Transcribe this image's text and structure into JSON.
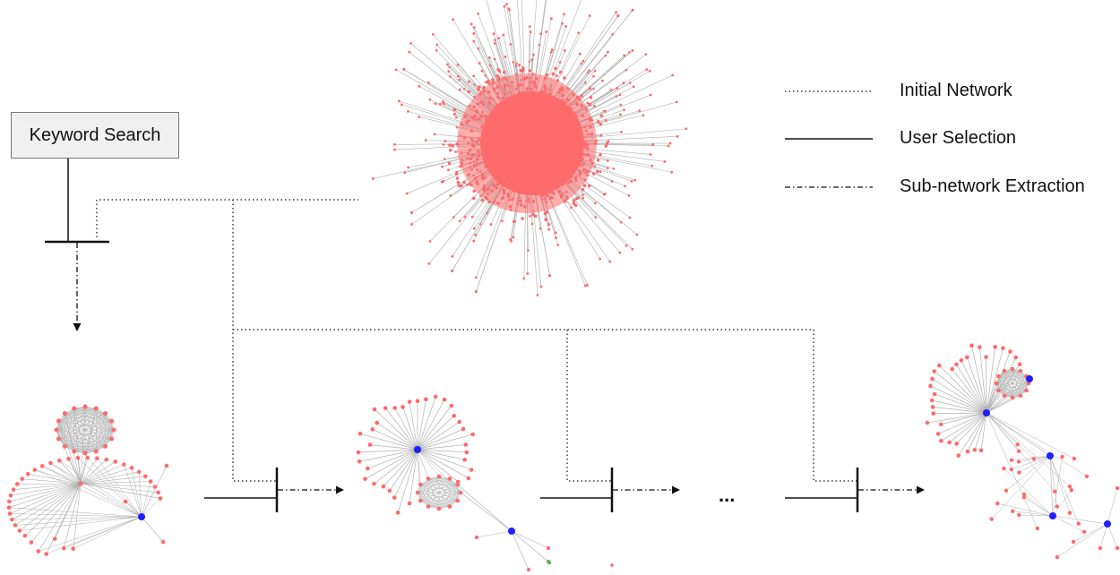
{
  "keyword_search": {
    "label": "Keyword Search"
  },
  "legend": {
    "items": [
      {
        "style": "dotted",
        "label": "Initial Network"
      },
      {
        "style": "solid",
        "label": "User Selection"
      },
      {
        "style": "dash-dot",
        "label": "Sub-network Extraction"
      }
    ]
  },
  "continuation": {
    "label": "..."
  },
  "colors": {
    "node": "#ff6b6b",
    "highlight_node": "#1f1fff",
    "extra_node": "#2ecc40",
    "edge": "#b0b0b0",
    "line": "#111111"
  }
}
